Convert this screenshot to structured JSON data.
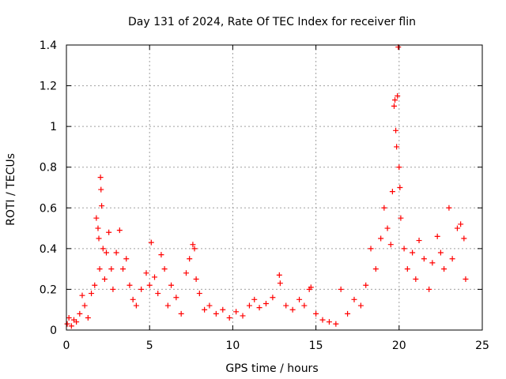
{
  "chart_data": {
    "type": "scatter",
    "title": "Day 131 of 2024, Rate Of TEC Index for receiver flin",
    "xlabel": "GPS time / hours",
    "ylabel": "ROTI / TECUs",
    "xlim": [
      0,
      25
    ],
    "ylim": [
      0,
      1.4
    ],
    "x_ticks": [
      "0",
      "5",
      "10",
      "15",
      "20",
      "25"
    ],
    "y_ticks": [
      "0",
      "0.2",
      "0.4",
      "0.6",
      "0.8",
      "1",
      "1.2",
      "1.4"
    ],
    "grid": true,
    "marker": "+",
    "color": "#ff0000",
    "series": [
      {
        "name": "ROTI",
        "points": [
          [
            0.05,
            0.03
          ],
          [
            0.15,
            0.06
          ],
          [
            0.3,
            0.02
          ],
          [
            0.45,
            0.05
          ],
          [
            0.6,
            0.04
          ],
          [
            0.8,
            0.08
          ],
          [
            0.95,
            0.17
          ],
          [
            1.1,
            0.12
          ],
          [
            1.3,
            0.06
          ],
          [
            1.5,
            0.18
          ],
          [
            1.7,
            0.22
          ],
          [
            1.8,
            0.55
          ],
          [
            1.9,
            0.5
          ],
          [
            1.95,
            0.45
          ],
          [
            2.0,
            0.3
          ],
          [
            2.05,
            0.75
          ],
          [
            2.08,
            0.69
          ],
          [
            2.12,
            0.61
          ],
          [
            2.2,
            0.4
          ],
          [
            2.3,
            0.25
          ],
          [
            2.4,
            0.38
          ],
          [
            2.55,
            0.48
          ],
          [
            2.7,
            0.3
          ],
          [
            2.8,
            0.2
          ],
          [
            3.0,
            0.38
          ],
          [
            3.2,
            0.49
          ],
          [
            3.4,
            0.3
          ],
          [
            3.6,
            0.35
          ],
          [
            3.8,
            0.22
          ],
          [
            4.0,
            0.15
          ],
          [
            4.2,
            0.12
          ],
          [
            4.5,
            0.2
          ],
          [
            4.8,
            0.28
          ],
          [
            5.0,
            0.22
          ],
          [
            5.1,
            0.43
          ],
          [
            5.3,
            0.26
          ],
          [
            5.5,
            0.18
          ],
          [
            5.7,
            0.37
          ],
          [
            5.9,
            0.3
          ],
          [
            6.1,
            0.12
          ],
          [
            6.3,
            0.22
          ],
          [
            6.6,
            0.16
          ],
          [
            6.9,
            0.08
          ],
          [
            7.2,
            0.28
          ],
          [
            7.4,
            0.35
          ],
          [
            7.6,
            0.42
          ],
          [
            7.7,
            0.4
          ],
          [
            7.8,
            0.25
          ],
          [
            8.0,
            0.18
          ],
          [
            8.3,
            0.1
          ],
          [
            8.6,
            0.12
          ],
          [
            9.0,
            0.08
          ],
          [
            9.4,
            0.1
          ],
          [
            9.8,
            0.06
          ],
          [
            10.2,
            0.09
          ],
          [
            10.6,
            0.07
          ],
          [
            11.0,
            0.12
          ],
          [
            11.3,
            0.15
          ],
          [
            11.6,
            0.11
          ],
          [
            12.0,
            0.13
          ],
          [
            12.4,
            0.16
          ],
          [
            12.8,
            0.27
          ],
          [
            12.85,
            0.23
          ],
          [
            13.2,
            0.12
          ],
          [
            13.6,
            0.1
          ],
          [
            14.0,
            0.15
          ],
          [
            14.3,
            0.12
          ],
          [
            14.6,
            0.2
          ],
          [
            14.7,
            0.21
          ],
          [
            15.0,
            0.08
          ],
          [
            15.4,
            0.05
          ],
          [
            15.8,
            0.04
          ],
          [
            16.2,
            0.03
          ],
          [
            16.5,
            0.2
          ],
          [
            16.9,
            0.08
          ],
          [
            17.3,
            0.15
          ],
          [
            17.7,
            0.12
          ],
          [
            18.0,
            0.22
          ],
          [
            18.3,
            0.4
          ],
          [
            18.6,
            0.3
          ],
          [
            18.9,
            0.45
          ],
          [
            19.1,
            0.6
          ],
          [
            19.3,
            0.5
          ],
          [
            19.5,
            0.42
          ],
          [
            19.6,
            0.68
          ],
          [
            19.7,
            1.1
          ],
          [
            19.75,
            1.13
          ],
          [
            19.8,
            0.98
          ],
          [
            19.85,
            0.9
          ],
          [
            19.9,
            1.15
          ],
          [
            19.95,
            1.39
          ],
          [
            20.0,
            0.8
          ],
          [
            20.05,
            0.7
          ],
          [
            20.1,
            0.55
          ],
          [
            20.3,
            0.4
          ],
          [
            20.5,
            0.3
          ],
          [
            20.8,
            0.38
          ],
          [
            21.0,
            0.25
          ],
          [
            21.2,
            0.44
          ],
          [
            21.5,
            0.35
          ],
          [
            21.8,
            0.2
          ],
          [
            22.0,
            0.33
          ],
          [
            22.3,
            0.46
          ],
          [
            22.5,
            0.38
          ],
          [
            22.7,
            0.3
          ],
          [
            23.0,
            0.6
          ],
          [
            23.2,
            0.35
          ],
          [
            23.5,
            0.5
          ],
          [
            23.7,
            0.52
          ],
          [
            23.9,
            0.45
          ],
          [
            24.0,
            0.25
          ]
        ]
      }
    ]
  }
}
